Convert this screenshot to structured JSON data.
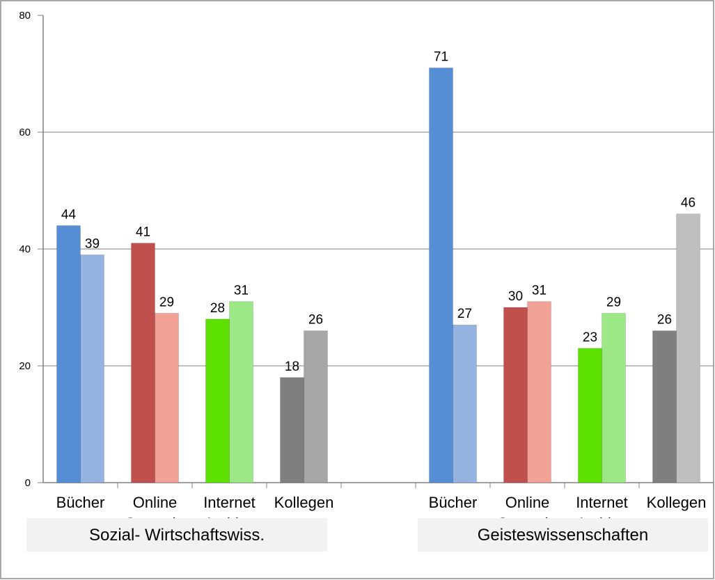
{
  "chart_data": {
    "type": "bar",
    "ylim": [
      0,
      80
    ],
    "yticks": [
      0,
      20,
      40,
      60,
      80
    ],
    "grid": true,
    "groups": [
      {
        "label": "Sozial- Wirtschaftswiss.",
        "categories": [
          {
            "label": [
              "Bücher"
            ],
            "values": [
              44,
              39
            ],
            "colors": [
              "#558ed5",
              "#95b3e0"
            ]
          },
          {
            "label": [
              "Online",
              "Journale"
            ],
            "values": [
              41,
              29
            ],
            "colors": [
              "#c0504d",
              "#f2a196"
            ]
          },
          {
            "label": [
              "Internet",
              "Archive"
            ],
            "values": [
              28,
              31
            ],
            "colors": [
              "#5be000",
              "#9ce887"
            ]
          },
          {
            "label": [
              "Kollegen"
            ],
            "values": [
              18,
              26
            ],
            "colors": [
              "#7f7f7f",
              "#a6a6a6"
            ]
          }
        ]
      },
      {
        "label": "Geisteswissenschaften",
        "categories": [
          {
            "label": [
              "Bücher"
            ],
            "values": [
              71,
              27
            ],
            "colors": [
              "#558ed5",
              "#95b3e0"
            ]
          },
          {
            "label": [
              "Online",
              "Journale"
            ],
            "values": [
              30,
              31
            ],
            "colors": [
              "#c0504d",
              "#f2a196"
            ]
          },
          {
            "label": [
              "Internet",
              "Archive"
            ],
            "values": [
              23,
              29
            ],
            "colors": [
              "#5be000",
              "#9ce887"
            ]
          },
          {
            "label": [
              "Kollegen"
            ],
            "values": [
              26,
              46
            ],
            "colors": [
              "#7f7f7f",
              "#bfbfbf"
            ]
          }
        ]
      }
    ]
  }
}
